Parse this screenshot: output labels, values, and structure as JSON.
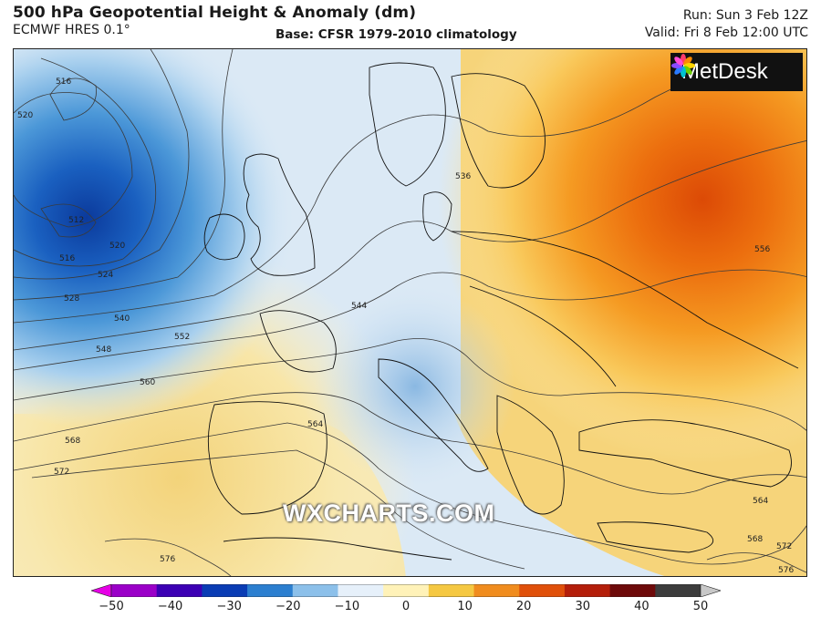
{
  "header": {
    "title": "500 hPa Geopotential Height & Anomaly (dm)",
    "model": "ECMWF HRES 0.1°",
    "base": "Base: CFSR 1979-2010 climatology",
    "run": "Run: Sun 3 Feb 12Z",
    "valid": "Valid: Fri 8 Feb 12:00 UTC"
  },
  "logo": {
    "text": "MetDesk"
  },
  "watermark": "WXCHARTS.COM",
  "contour_labels": [
    "516",
    "520",
    "512",
    "516",
    "520",
    "524",
    "528",
    "540",
    "548",
    "552",
    "560",
    "568",
    "572",
    "576",
    "564",
    "544",
    "536",
    "556",
    "564",
    "568",
    "572",
    "576"
  ],
  "colorbar": {
    "ticks": [
      "−50",
      "−40",
      "−30",
      "−20",
      "−10",
      "0",
      "10",
      "20",
      "30",
      "40",
      "50"
    ],
    "colors": [
      "#e600e6",
      "#9b00c8",
      "#3c00b4",
      "#0a3cb4",
      "#2c7fd0",
      "#8cc0ea",
      "#e6f0fa",
      "#fff2b8",
      "#f5c842",
      "#f08c1e",
      "#e0500a",
      "#b41e0a",
      "#6e0a0a",
      "#3c3c3c",
      "#c8c8c8"
    ]
  }
}
